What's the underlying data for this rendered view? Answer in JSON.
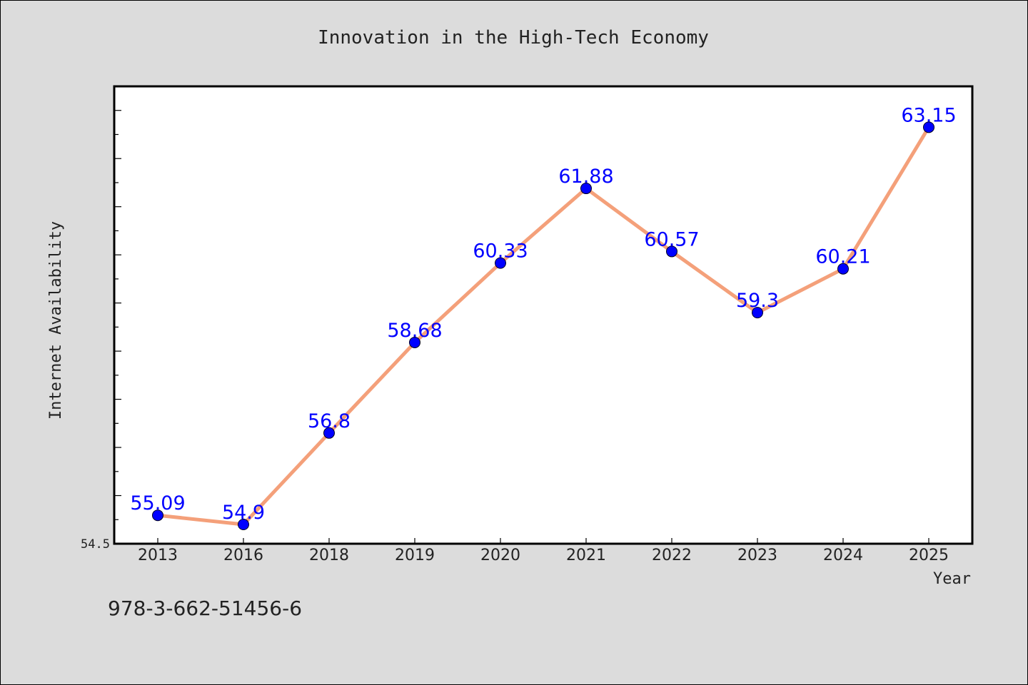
{
  "chart_data": {
    "type": "line",
    "title": "Innovation in the High-Tech Economy",
    "xlabel": "Year",
    "ylabel": "Internet Availability",
    "categories": [
      "2013",
      "2016",
      "2018",
      "2019",
      "2020",
      "2021",
      "2022",
      "2023",
      "2024",
      "2025"
    ],
    "series": [
      {
        "values": [
          55.09,
          54.9,
          56.8,
          58.68,
          60.33,
          61.88,
          60.57,
          59.3,
          60.21,
          63.15
        ],
        "data_labels": [
          "55.09",
          "54.9",
          "56.8",
          "58.68",
          "60.33",
          "61.88",
          "60.57",
          "59.3",
          "60.21",
          "63.15"
        ],
        "line_color": "#f4a07a",
        "marker_color": "#0000ff"
      }
    ],
    "ylim": [
      54.5,
      64.0
    ],
    "y_tick_labels_shown": [
      "54.5"
    ],
    "y_minor_tick_step": 0.5,
    "grid": false,
    "legend": "none"
  },
  "annotation": {
    "text": "978-3-662-51456-6"
  },
  "colors": {
    "figure_background": "#dcdcdc",
    "plot_background": "#ffffff",
    "axis": "#000000",
    "text": "#222222",
    "data_label": "#0000ff"
  }
}
